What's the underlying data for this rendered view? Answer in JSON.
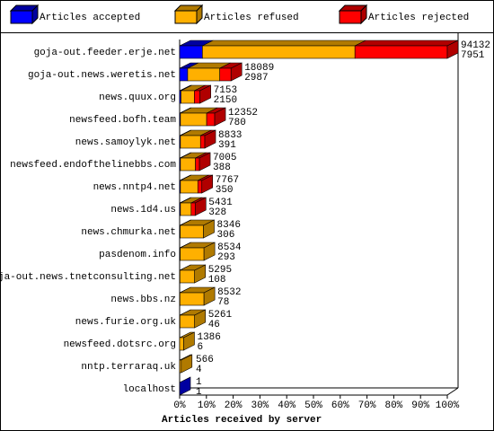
{
  "chart_data": {
    "type": "bar3d_stacked_horizontal",
    "xlabel": "Articles received by server",
    "categories": [
      "goja-out.feeder.erje.net",
      "goja-out.news.weretis.net",
      "news.quux.org",
      "newsfeed.bofh.team",
      "news.samoylyk.net",
      "newsfeed.endofthelinebbs.com",
      "news.nntp4.net",
      "news.1d4.us",
      "news.chmurka.net",
      "pasdenom.info",
      "goja-out.news.tnetconsulting.net",
      "news.bbs.nz",
      "news.furie.org.uk",
      "newsfeed.dotsrc.org",
      "nntp.terraraq.uk",
      "localhost"
    ],
    "series": [
      {
        "name": "Articles accepted",
        "color": "#0000ff",
        "side_color": "#0000a0",
        "values": [
          8.5,
          3,
          0.5,
          0.3,
          0.3,
          0.3,
          0.3,
          0.3,
          0.2,
          0.2,
          0.1,
          0.1,
          0.1,
          0,
          0,
          0.001
        ]
      },
      {
        "name": "Articles refused",
        "color": "#ffb000",
        "side_color": "#b07a00",
        "values": [
          57,
          12,
          5,
          9.8,
          7.5,
          5.6,
          6.5,
          4,
          8.7,
          8.9,
          5.5,
          9,
          5.5,
          1.5,
          0.6,
          0
        ]
      },
      {
        "name": "Articles rejected",
        "color": "#ff0000",
        "side_color": "#b00000",
        "values": [
          34.5,
          4.2,
          2.1,
          3,
          1.6,
          1.5,
          1.5,
          1.5,
          0,
          0,
          0,
          0,
          0,
          0,
          0,
          0
        ]
      }
    ],
    "right_labels": [
      [
        94132,
        7951
      ],
      [
        18089,
        2987
      ],
      [
        7153,
        2150
      ],
      [
        12352,
        780
      ],
      [
        8833,
        391
      ],
      [
        7005,
        388
      ],
      [
        7767,
        350
      ],
      [
        5431,
        328
      ],
      [
        8346,
        306
      ],
      [
        8534,
        293
      ],
      [
        5295,
        108
      ],
      [
        8532,
        78
      ],
      [
        5261,
        46
      ],
      [
        1386,
        6
      ],
      [
        566,
        4
      ],
      [
        1,
        1
      ]
    ],
    "xlim": [
      0,
      100
    ],
    "xticks": [
      {
        "value": 0,
        "label": "0%"
      },
      {
        "value": 10,
        "label": "10%"
      },
      {
        "value": 20,
        "label": "20%"
      },
      {
        "value": 30,
        "label": "30%"
      },
      {
        "value": 40,
        "label": "40%"
      },
      {
        "value": 50,
        "label": "50%"
      },
      {
        "value": 60,
        "label": "60%"
      },
      {
        "value": 70,
        "label": "70%"
      },
      {
        "value": 80,
        "label": "80%"
      },
      {
        "value": 90,
        "label": "90%"
      },
      {
        "value": 100,
        "label": "100%"
      }
    ]
  }
}
